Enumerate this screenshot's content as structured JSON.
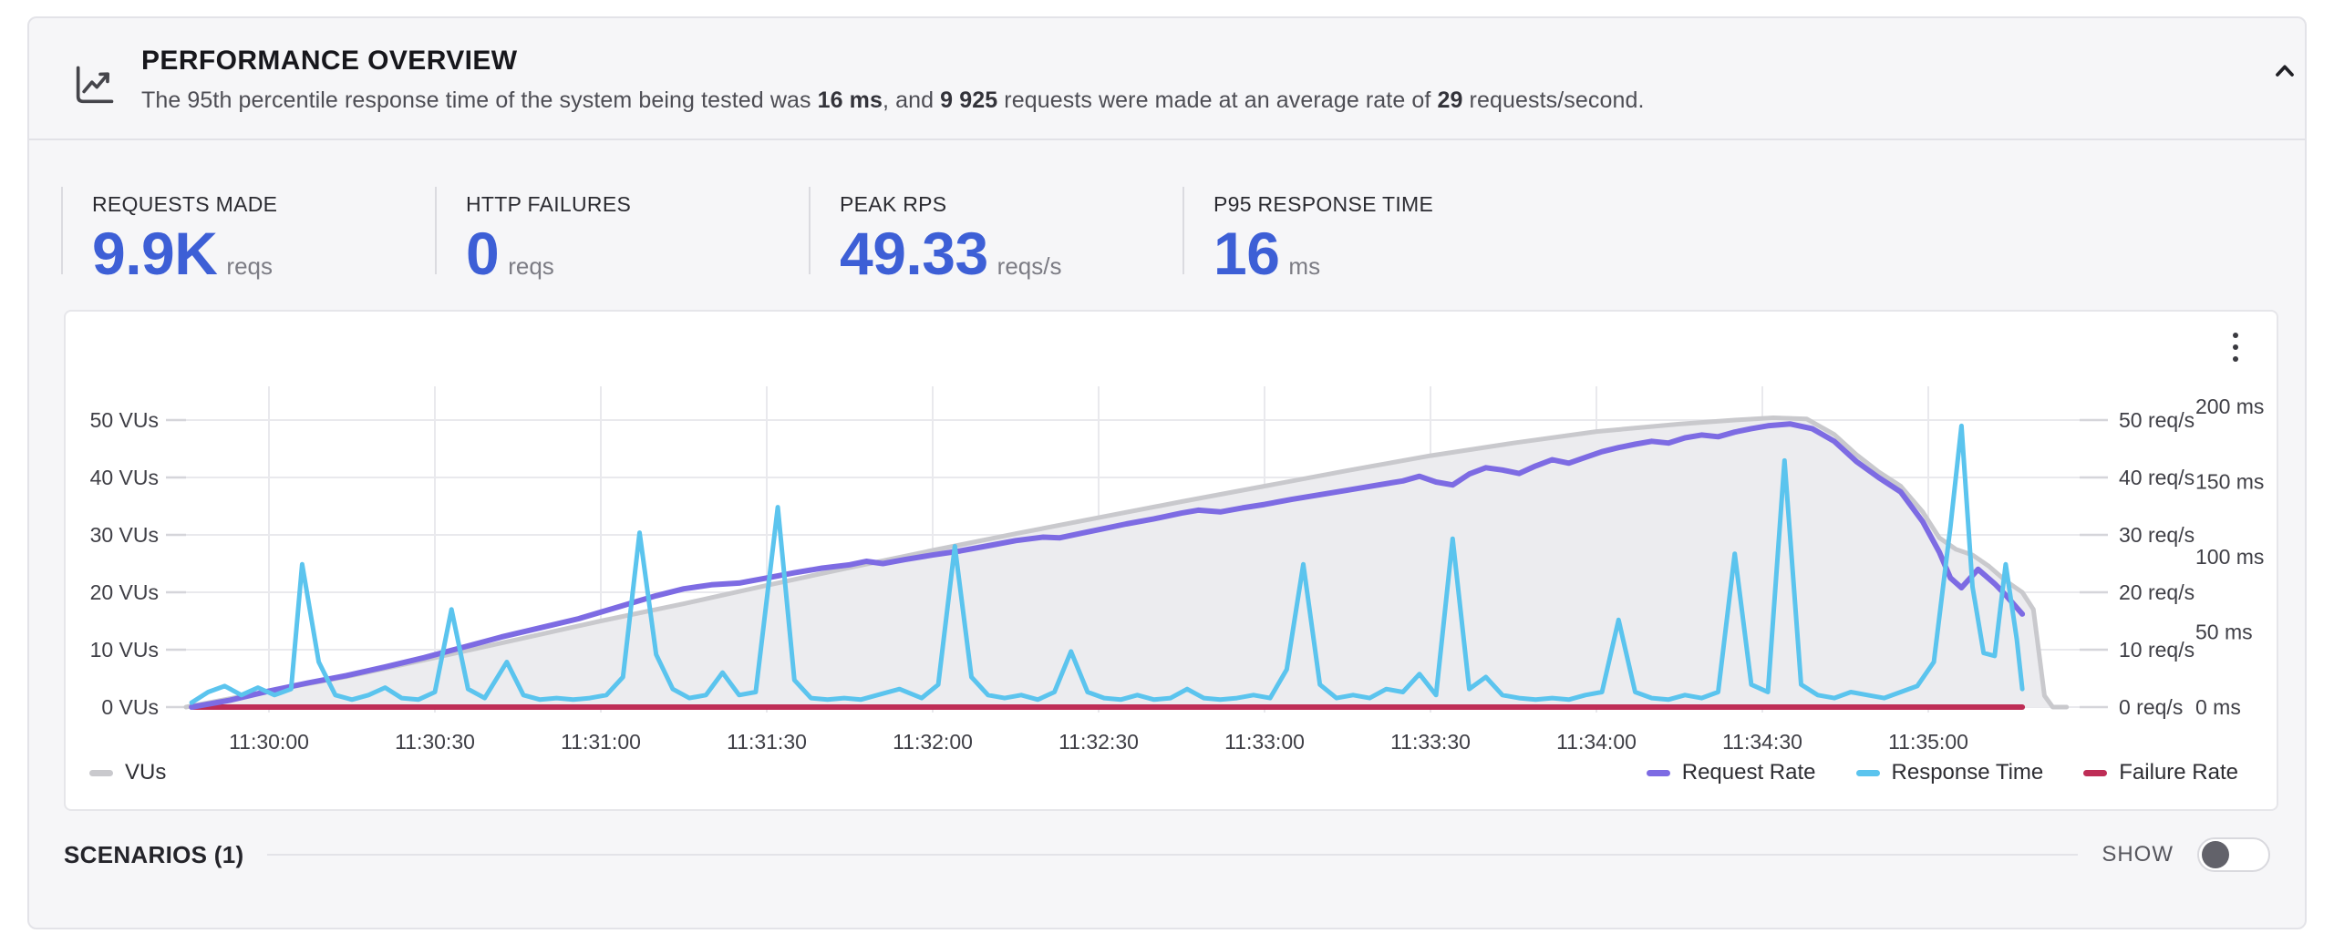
{
  "header": {
    "title": "PERFORMANCE OVERVIEW",
    "subtitle_parts": [
      {
        "text": "The 95th percentile response time of the system being tested was ",
        "bold": false
      },
      {
        "text": "16 ms",
        "bold": true
      },
      {
        "text": ", and ",
        "bold": false
      },
      {
        "text": "9 925",
        "bold": true
      },
      {
        "text": " requests were made at an average rate of ",
        "bold": false
      },
      {
        "text": "29",
        "bold": true
      },
      {
        "text": " requests/second.",
        "bold": false
      }
    ]
  },
  "stats": [
    {
      "label": "REQUESTS MADE",
      "value": "9.9K",
      "unit": "reqs"
    },
    {
      "label": "HTTP FAILURES",
      "value": "0",
      "unit": "reqs"
    },
    {
      "label": "PEAK RPS",
      "value": "49.33",
      "unit": "reqs/s"
    },
    {
      "label": "P95 RESPONSE TIME",
      "value": "16",
      "unit": "ms"
    }
  ],
  "scenarios": {
    "label": "SCENARIOS (1)",
    "show_label": "SHOW",
    "toggle_state": "off"
  },
  "colors": {
    "stat_value": "#3D5FD6",
    "vus": "#C9C9CD",
    "vus_fill": "#ECECEF",
    "request_rate": "#7D6BE3",
    "response_time": "#5BC4EE",
    "failure_rate": "#BE2D56",
    "grid": "#E9E9ED",
    "tick_dash": "#D5D5DA",
    "axis_text": "#3F3F46"
  },
  "chart_data": {
    "type": "line",
    "x_tick_labels": [
      "11:30:00",
      "11:30:30",
      "11:31:00",
      "11:31:30",
      "11:32:00",
      "11:32:30",
      "11:33:00",
      "11:33:30",
      "11:34:00",
      "11:34:30",
      "11:35:00"
    ],
    "x_tick_interval_sec": 30,
    "x_range_sec": [
      -15,
      325
    ],
    "grid": true,
    "legend_position": "bottom",
    "axes": {
      "left": {
        "unit": "VUs",
        "ticks": [
          0,
          10,
          20,
          30,
          40,
          50
        ],
        "range": [
          0,
          56
        ]
      },
      "right": {
        "unit": "req/s",
        "ticks": [
          0,
          10,
          20,
          30,
          40,
          50
        ],
        "range": [
          0,
          56
        ]
      },
      "right2": {
        "unit": "ms",
        "ticks": [
          0,
          50,
          100,
          150,
          200
        ],
        "range": [
          0,
          213
        ]
      }
    },
    "series": [
      {
        "name": "VUs",
        "axis": "left",
        "color_key": "vus",
        "area": true,
        "points": [
          [
            -15,
            0
          ],
          [
            0,
            2.8
          ],
          [
            15,
            5.5
          ],
          [
            30,
            8.6
          ],
          [
            45,
            11.8
          ],
          [
            60,
            15
          ],
          [
            75,
            18
          ],
          [
            90,
            21.2
          ],
          [
            105,
            24.3
          ],
          [
            120,
            27.3
          ],
          [
            135,
            30.2
          ],
          [
            150,
            33
          ],
          [
            165,
            35.8
          ],
          [
            180,
            38.5
          ],
          [
            195,
            41.2
          ],
          [
            210,
            43.8
          ],
          [
            225,
            46
          ],
          [
            240,
            48
          ],
          [
            255,
            49.3
          ],
          [
            265,
            50
          ],
          [
            272,
            50.4
          ],
          [
            278,
            50.2
          ],
          [
            283,
            47.5
          ],
          [
            287,
            44
          ],
          [
            291,
            41
          ],
          [
            295,
            38.5
          ],
          [
            299,
            34
          ],
          [
            302,
            29.5
          ],
          [
            305,
            27.5
          ],
          [
            308,
            26.5
          ],
          [
            311,
            24.5
          ],
          [
            314,
            22
          ],
          [
            317,
            20
          ],
          [
            319,
            17
          ],
          [
            321,
            2
          ],
          [
            322.5,
            0
          ],
          [
            325,
            0
          ]
        ]
      },
      {
        "name": "Request Rate",
        "axis": "right",
        "color_key": "request_rate",
        "area": false,
        "points": [
          [
            -14,
            0
          ],
          [
            -7,
            1.2
          ],
          [
            0,
            2.8
          ],
          [
            7,
            4.2
          ],
          [
            14,
            5.5
          ],
          [
            21,
            7
          ],
          [
            28,
            8.6
          ],
          [
            35,
            10.4
          ],
          [
            42,
            12.2
          ],
          [
            49,
            13.8
          ],
          [
            56,
            15.4
          ],
          [
            63,
            17.4
          ],
          [
            70,
            19.4
          ],
          [
            75,
            20.6
          ],
          [
            80,
            21.3
          ],
          [
            85,
            21.6
          ],
          [
            90,
            22.5
          ],
          [
            95,
            23.4
          ],
          [
            100,
            24.2
          ],
          [
            105,
            24.8
          ],
          [
            108,
            25.4
          ],
          [
            111,
            25
          ],
          [
            115,
            25.7
          ],
          [
            120,
            26.5
          ],
          [
            125,
            27.2
          ],
          [
            130,
            28.1
          ],
          [
            135,
            29
          ],
          [
            140,
            29.6
          ],
          [
            143,
            29.5
          ],
          [
            147,
            30.3
          ],
          [
            151,
            31.1
          ],
          [
            155,
            31.9
          ],
          [
            160,
            32.8
          ],
          [
            165,
            33.8
          ],
          [
            168,
            34.3
          ],
          [
            172,
            34
          ],
          [
            176,
            34.7
          ],
          [
            180,
            35.3
          ],
          [
            185,
            36.2
          ],
          [
            190,
            37
          ],
          [
            195,
            37.8
          ],
          [
            200,
            38.6
          ],
          [
            205,
            39.4
          ],
          [
            208,
            40.2
          ],
          [
            211,
            39.2
          ],
          [
            214,
            38.7
          ],
          [
            217,
            40.6
          ],
          [
            220,
            41.7
          ],
          [
            223,
            41.3
          ],
          [
            226,
            40.7
          ],
          [
            229,
            42
          ],
          [
            232,
            43.1
          ],
          [
            235,
            42.5
          ],
          [
            238,
            43.5
          ],
          [
            241,
            44.5
          ],
          [
            244,
            45.2
          ],
          [
            247,
            45.8
          ],
          [
            250,
            46.3
          ],
          [
            253,
            46
          ],
          [
            256,
            46.9
          ],
          [
            259,
            47.4
          ],
          [
            262,
            47.1
          ],
          [
            265,
            47.9
          ],
          [
            268,
            48.5
          ],
          [
            271,
            49
          ],
          [
            275,
            49.33
          ],
          [
            279,
            48.5
          ],
          [
            283,
            46.3
          ],
          [
            287,
            42.8
          ],
          [
            291,
            40
          ],
          [
            295,
            37.5
          ],
          [
            299,
            32.3
          ],
          [
            302,
            27
          ],
          [
            304,
            22.5
          ],
          [
            306,
            20.8
          ],
          [
            309,
            24
          ],
          [
            312,
            21.5
          ],
          [
            314,
            19.5
          ],
          [
            317,
            16.2
          ]
        ]
      },
      {
        "name": "Response Time",
        "axis": "right2",
        "color_key": "response_time",
        "area": false,
        "points": [
          [
            -14,
            3
          ],
          [
            -11,
            10
          ],
          [
            -8,
            14
          ],
          [
            -5,
            8
          ],
          [
            -2,
            13
          ],
          [
            1,
            8
          ],
          [
            4,
            12
          ],
          [
            6,
            95
          ],
          [
            9,
            30
          ],
          [
            12,
            8
          ],
          [
            15,
            5
          ],
          [
            18,
            8
          ],
          [
            21,
            13
          ],
          [
            24,
            6
          ],
          [
            27,
            5
          ],
          [
            30,
            10
          ],
          [
            33,
            65
          ],
          [
            36,
            12
          ],
          [
            39,
            6
          ],
          [
            43,
            30
          ],
          [
            46,
            8
          ],
          [
            49,
            5
          ],
          [
            52,
            6
          ],
          [
            55,
            5
          ],
          [
            58,
            6
          ],
          [
            61,
            8
          ],
          [
            64,
            20
          ],
          [
            67,
            116
          ],
          [
            70,
            35
          ],
          [
            73,
            12
          ],
          [
            76,
            6
          ],
          [
            79,
            8
          ],
          [
            82,
            23
          ],
          [
            85,
            8
          ],
          [
            88,
            10
          ],
          [
            92,
            133
          ],
          [
            95,
            18
          ],
          [
            98,
            6
          ],
          [
            101,
            5
          ],
          [
            104,
            6
          ],
          [
            107,
            5
          ],
          [
            110,
            8
          ],
          [
            114,
            12
          ],
          [
            118,
            6
          ],
          [
            121,
            15
          ],
          [
            124,
            107
          ],
          [
            127,
            20
          ],
          [
            130,
            8
          ],
          [
            133,
            6
          ],
          [
            136,
            8
          ],
          [
            139,
            5
          ],
          [
            142,
            10
          ],
          [
            145,
            37
          ],
          [
            148,
            10
          ],
          [
            151,
            6
          ],
          [
            154,
            5
          ],
          [
            157,
            8
          ],
          [
            160,
            5
          ],
          [
            163,
            6
          ],
          [
            166,
            12
          ],
          [
            169,
            6
          ],
          [
            172,
            5
          ],
          [
            175,
            6
          ],
          [
            178,
            8
          ],
          [
            181,
            6
          ],
          [
            184,
            25
          ],
          [
            187,
            95
          ],
          [
            190,
            15
          ],
          [
            193,
            6
          ],
          [
            196,
            8
          ],
          [
            199,
            6
          ],
          [
            202,
            12
          ],
          [
            205,
            10
          ],
          [
            208,
            22
          ],
          [
            211,
            8
          ],
          [
            214,
            112
          ],
          [
            217,
            12
          ],
          [
            220,
            20
          ],
          [
            223,
            8
          ],
          [
            226,
            6
          ],
          [
            229,
            5
          ],
          [
            232,
            6
          ],
          [
            235,
            5
          ],
          [
            238,
            8
          ],
          [
            241,
            10
          ],
          [
            244,
            58
          ],
          [
            247,
            10
          ],
          [
            250,
            6
          ],
          [
            253,
            5
          ],
          [
            256,
            8
          ],
          [
            259,
            6
          ],
          [
            262,
            10
          ],
          [
            265,
            102
          ],
          [
            268,
            15
          ],
          [
            271,
            10
          ],
          [
            274,
            164
          ],
          [
            277,
            15
          ],
          [
            280,
            8
          ],
          [
            283,
            6
          ],
          [
            286,
            10
          ],
          [
            289,
            8
          ],
          [
            292,
            6
          ],
          [
            295,
            10
          ],
          [
            298,
            14
          ],
          [
            301,
            30
          ],
          [
            304,
            120
          ],
          [
            306,
            187
          ],
          [
            308,
            80
          ],
          [
            310,
            36
          ],
          [
            312,
            34
          ],
          [
            314,
            95
          ],
          [
            316,
            45
          ],
          [
            317,
            12
          ]
        ]
      },
      {
        "name": "Failure Rate",
        "axis": "right",
        "color_key": "failure_rate",
        "area": false,
        "points": [
          [
            -14,
            0
          ],
          [
            317,
            0
          ]
        ]
      }
    ]
  }
}
